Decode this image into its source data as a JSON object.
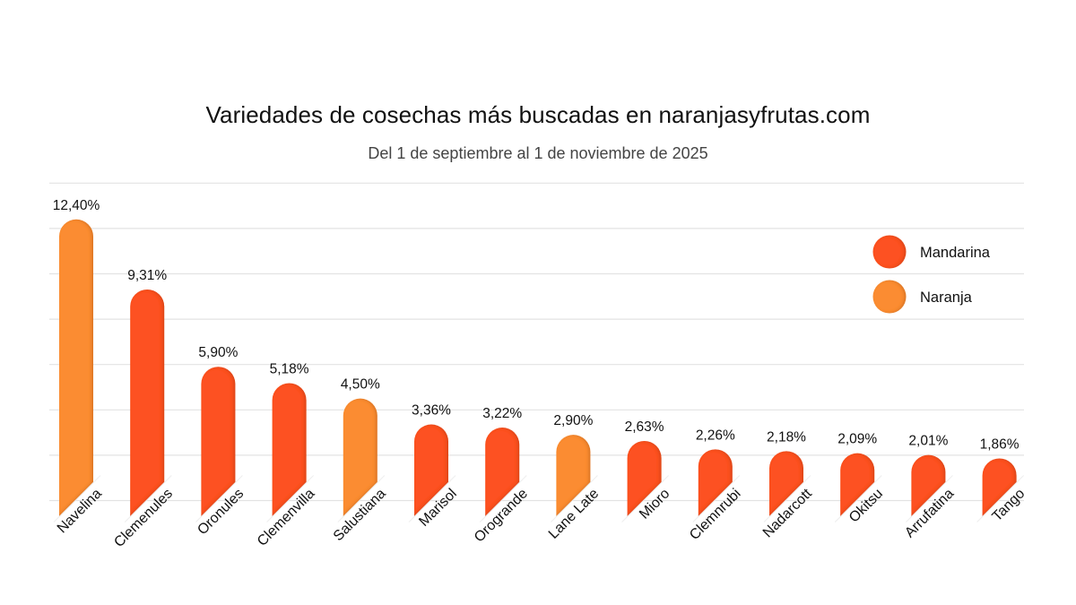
{
  "chart_data": {
    "type": "bar",
    "title": "Variedades de cosechas más buscadas en naranjasyfrutas.com",
    "subtitle": "Del 1 de septiembre al 1 de noviembre de 2025",
    "xlabel": "",
    "ylabel": "",
    "ylim": [
      0,
      14
    ],
    "y_gridlines": [
      0,
      2,
      4,
      6,
      8,
      10,
      12,
      14
    ],
    "grid": true,
    "y_tick_labels_visible": false,
    "legend_position": "top-right",
    "legend": [
      {
        "name": "Mandarina",
        "color": "#FD5124"
      },
      {
        "name": "Naranja",
        "color": "#FB8C31"
      }
    ],
    "categories": [
      "Navelina",
      "Clemenules",
      "Oronules",
      "Clemenvilla",
      "Salustiana",
      "Marisol",
      "Orogrande",
      "Lane Late",
      "Mioro",
      "Clemnrubi",
      "Nadarcott",
      "Okitsu",
      "Arrufatina",
      "Tango"
    ],
    "values": [
      12.4,
      9.31,
      5.9,
      5.18,
      4.5,
      3.36,
      3.22,
      2.9,
      2.63,
      2.26,
      2.18,
      2.09,
      2.01,
      1.86
    ],
    "value_labels": [
      "12,40%",
      "9,31%",
      "5,90%",
      "5,18%",
      "4,50%",
      "3,36%",
      "3,22%",
      "2,90%",
      "2,63%",
      "2,26%",
      "2,18%",
      "2,09%",
      "2,01%",
      "1,86%"
    ],
    "types": [
      "Naranja",
      "Mandarina",
      "Mandarina",
      "Mandarina",
      "Naranja",
      "Mandarina",
      "Mandarina",
      "Naranja",
      "Mandarina",
      "Mandarina",
      "Mandarina",
      "Mandarina",
      "Mandarina",
      "Mandarina"
    ],
    "unit": "%"
  }
}
